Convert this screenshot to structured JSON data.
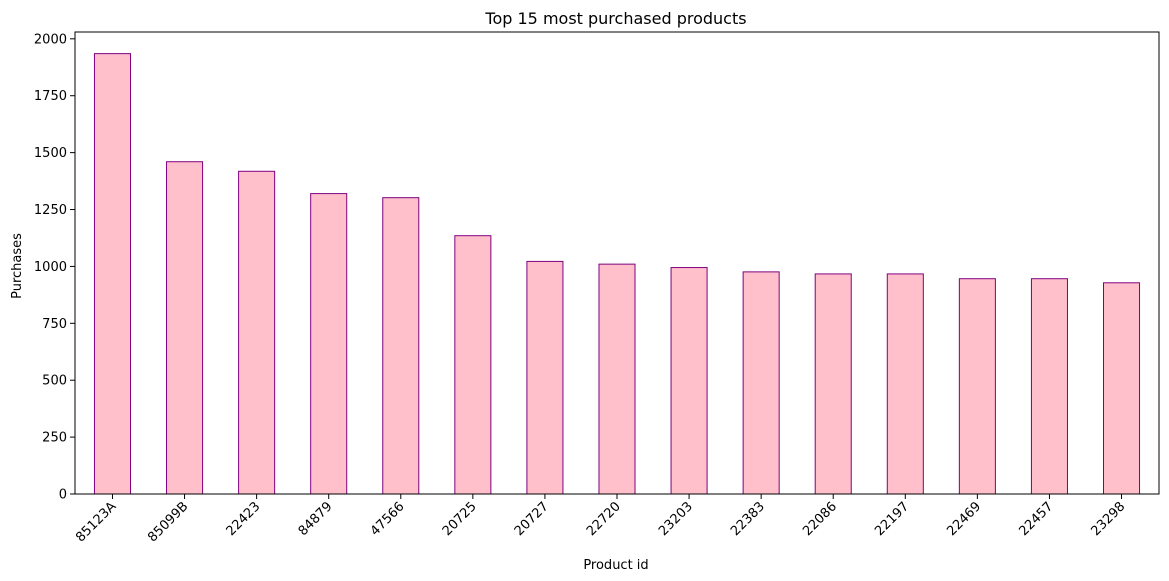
{
  "chart_data": {
    "type": "bar",
    "title": "Top 15 most purchased products",
    "xlabel": "Product id",
    "ylabel": "Purchases",
    "categories": [
      "85123A",
      "85099B",
      "22423",
      "84879",
      "47566",
      "20725",
      "20727",
      "22720",
      "23203",
      "22383",
      "22086",
      "22197",
      "22469",
      "22457",
      "23298"
    ],
    "values": [
      1935,
      1460,
      1418,
      1320,
      1302,
      1135,
      1022,
      1010,
      995,
      976,
      967,
      967,
      946,
      946,
      928
    ],
    "ylim": [
      0,
      2030
    ],
    "yticks": [
      0,
      250,
      500,
      750,
      1000,
      1250,
      1500,
      1750,
      2000
    ],
    "grid": false,
    "legend": "none",
    "colors": {
      "bar_fill": "#ffc0cb",
      "bar_edge": "#800080"
    }
  }
}
